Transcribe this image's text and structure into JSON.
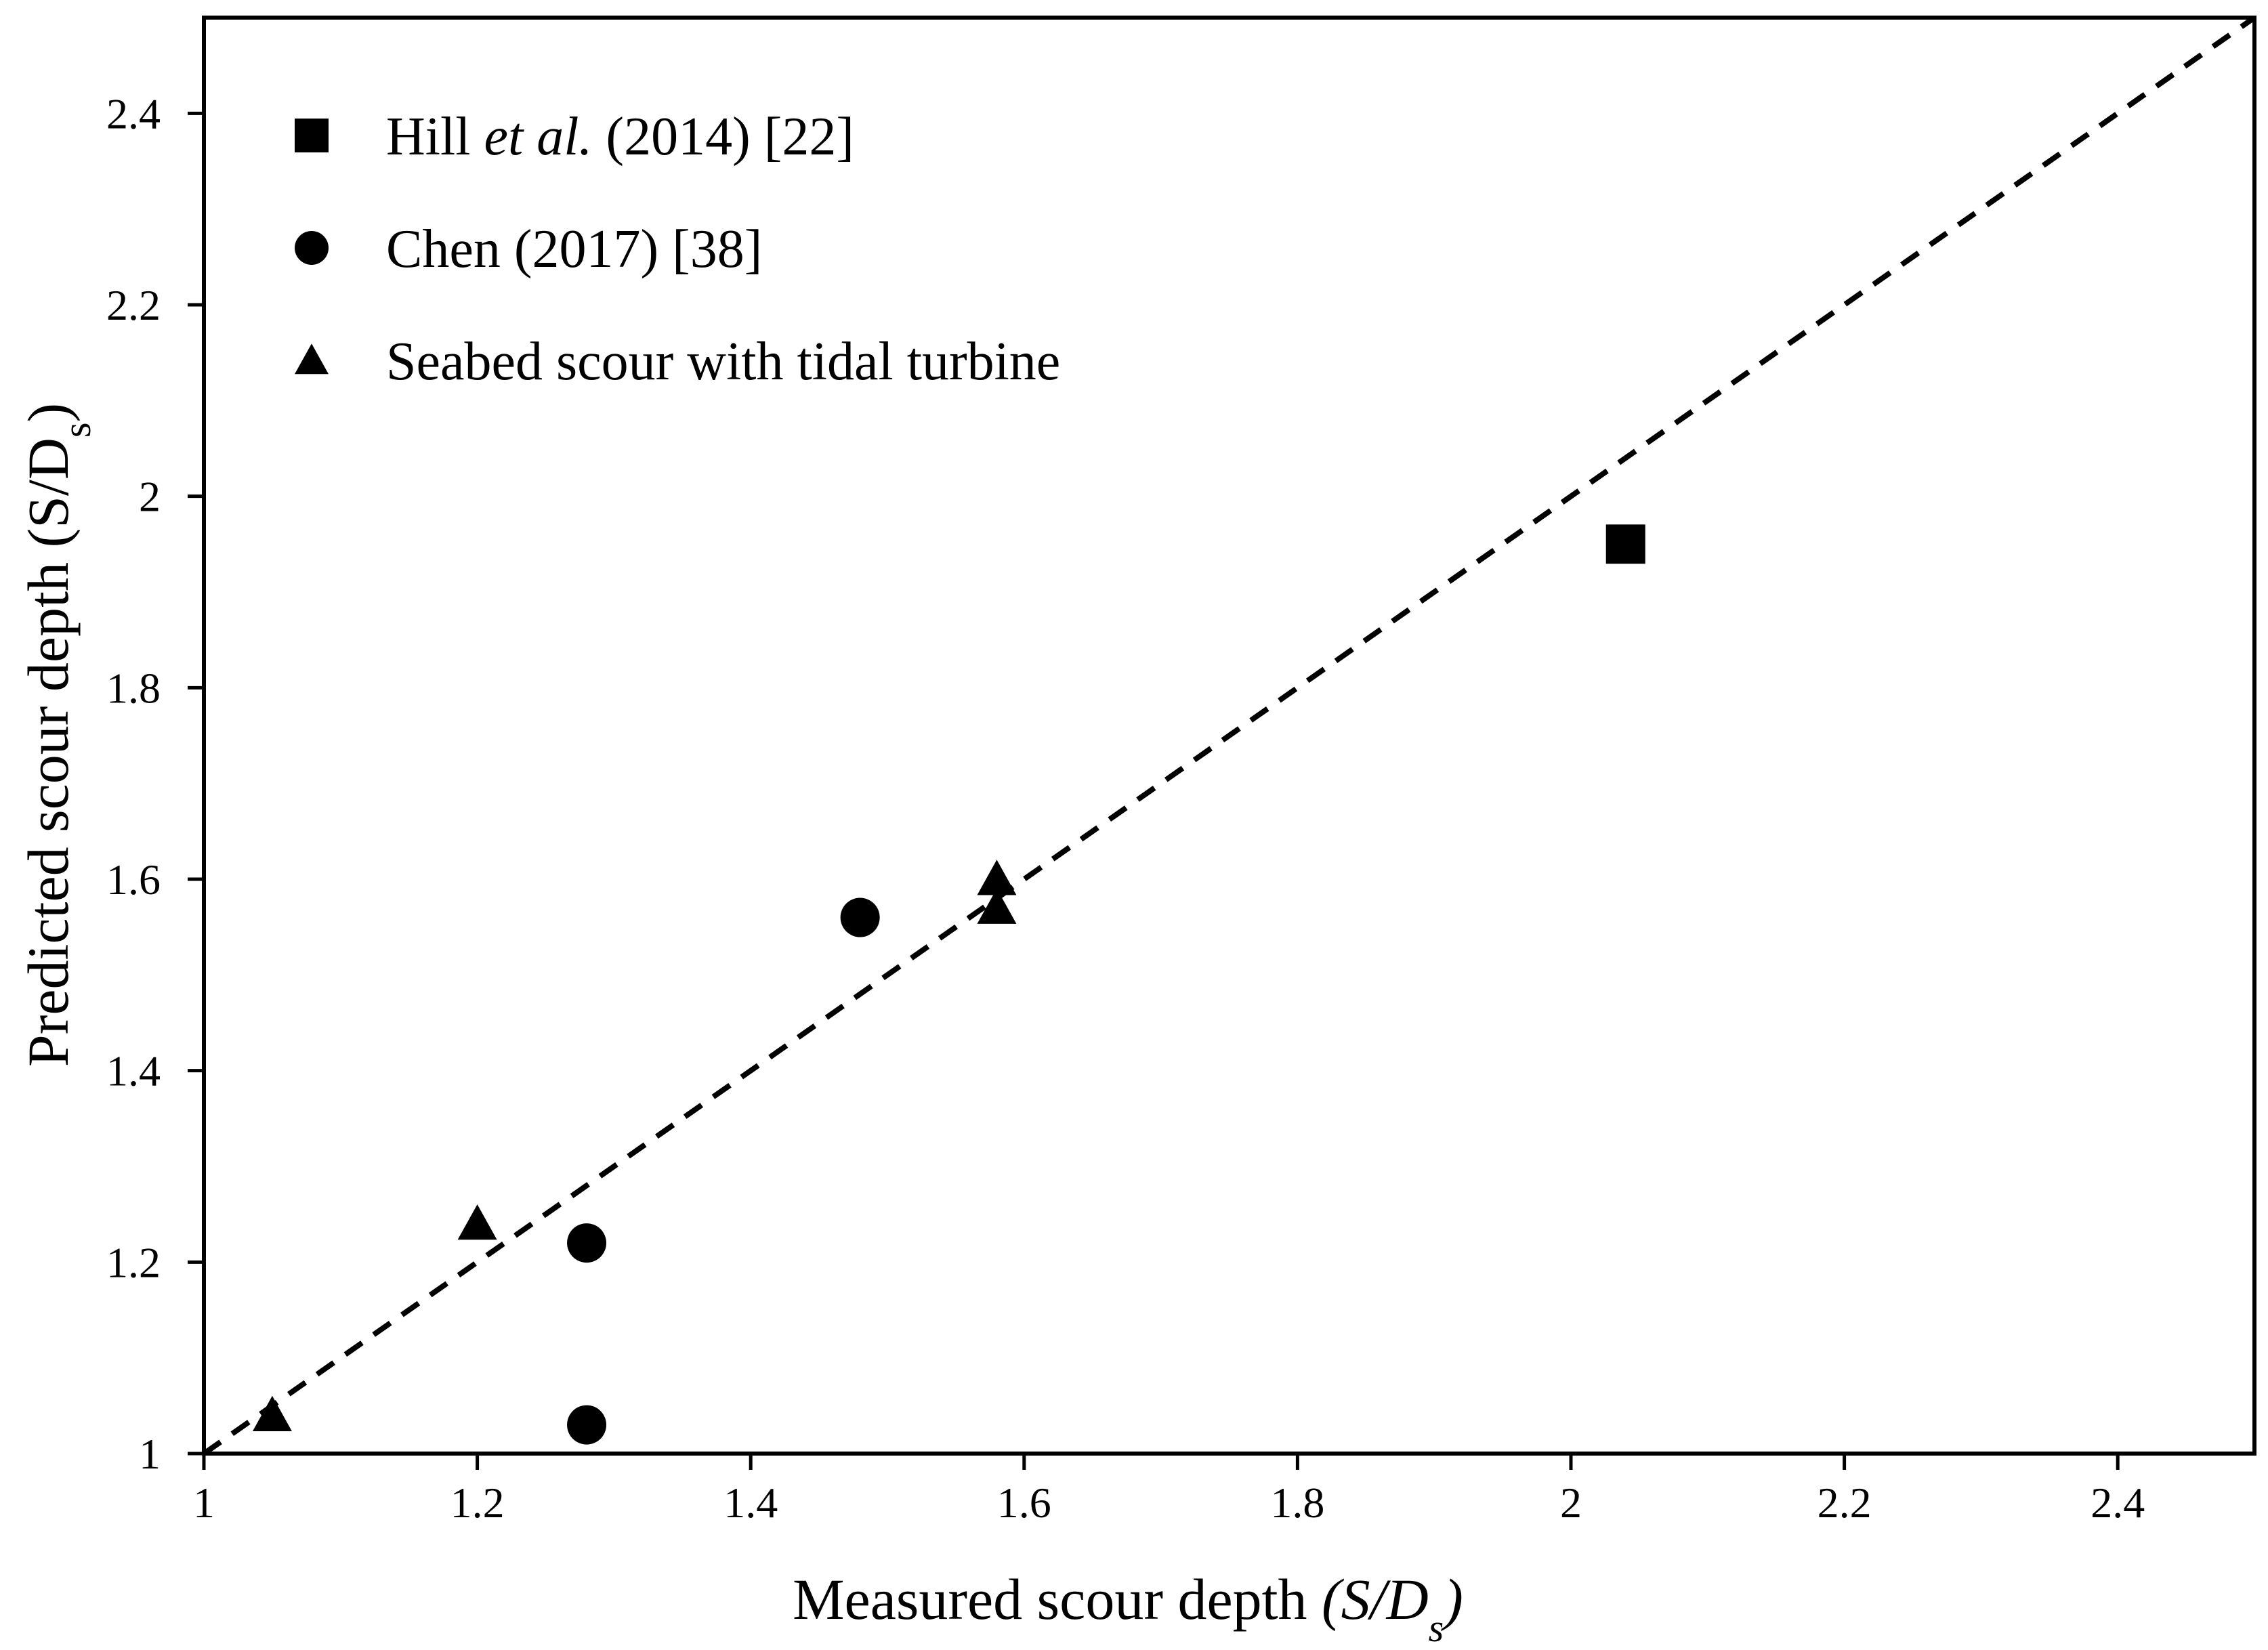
{
  "chart_data": {
    "type": "scatter",
    "title": "",
    "xlabel": {
      "prefix": "Measured scour depth ",
      "var": "(S/D",
      "sub": "s",
      "suffix": ")"
    },
    "ylabel": {
      "prefix": "Predicted scour depth (S/D",
      "sub": "s",
      "suffix": ")"
    },
    "xlim": [
      1,
      2.5
    ],
    "ylim": [
      1,
      2.5
    ],
    "xticks": [
      "1",
      "1.2",
      "1.4",
      "1.6",
      "1.8",
      "2",
      "2.2",
      "2.4"
    ],
    "yticks": [
      "1",
      "1.2",
      "1.4",
      "1.6",
      "1.8",
      "2",
      "2.2",
      "2.4"
    ],
    "xtick_values": [
      1,
      1.2,
      1.4,
      1.6,
      1.8,
      2,
      2.2,
      2.4
    ],
    "ytick_values": [
      1,
      1.2,
      1.4,
      1.6,
      1.8,
      2,
      2.2,
      2.4
    ],
    "grid": false,
    "legend_position": "top-left",
    "reference_line": {
      "style": "dashed",
      "x": [
        1,
        2.5
      ],
      "y": [
        1,
        2.5
      ]
    },
    "series": [
      {
        "name": "Hill et al. (2014) [22]",
        "label_parts": [
          "Hill ",
          "et al.",
          " (2014) [22]"
        ],
        "marker": "square",
        "color": "#000000",
        "points": [
          [
            2.04,
            1.95
          ]
        ]
      },
      {
        "name": "Chen (2017) [38]",
        "label_parts": [
          "Chen (2017) [38]"
        ],
        "marker": "circle",
        "color": "#000000",
        "points": [
          [
            1.28,
            1.22
          ],
          [
            1.28,
            1.03
          ],
          [
            1.48,
            1.56
          ]
        ]
      },
      {
        "name": "Seabed scour with tidal turbine",
        "label_parts": [
          "Seabed scour with tidal turbine"
        ],
        "marker": "triangle",
        "color": "#000000",
        "points": [
          [
            1.05,
            1.04
          ],
          [
            1.2,
            1.24
          ],
          [
            1.58,
            1.6
          ],
          [
            1.58,
            1.57
          ]
        ]
      }
    ]
  }
}
